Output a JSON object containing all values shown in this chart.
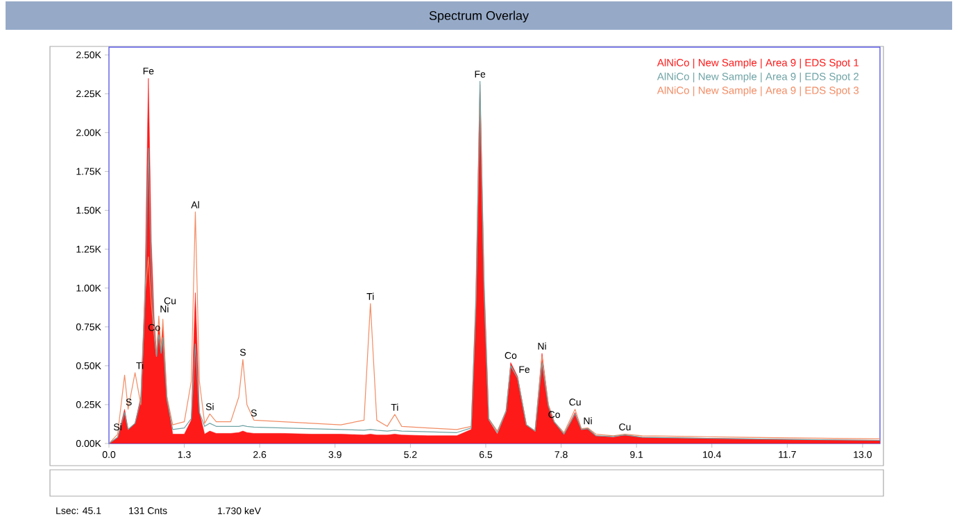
{
  "chart_data": {
    "type": "area",
    "title": "Spectrum Overlay",
    "x": [
      0,
      0.15,
      0.27,
      0.33,
      0.45,
      0.55,
      0.62,
      0.68,
      0.73,
      0.78,
      0.82,
      0.86,
      0.9,
      0.93,
      1.0,
      1.1,
      1.3,
      1.42,
      1.49,
      1.56,
      1.65,
      1.74,
      1.85,
      2.1,
      2.24,
      2.31,
      2.38,
      2.5,
      3.0,
      3.5,
      4.0,
      4.4,
      4.51,
      4.62,
      4.8,
      4.93,
      5.05,
      5.5,
      6.0,
      6.25,
      6.33,
      6.4,
      6.47,
      6.55,
      6.7,
      6.85,
      6.93,
      7.05,
      7.2,
      7.35,
      7.47,
      7.58,
      7.68,
      7.85,
      8.04,
      8.15,
      8.26,
      8.4,
      8.7,
      8.9,
      9.2,
      10.0,
      11.0,
      12.0,
      13.3
    ],
    "series": [
      {
        "name": "AlNiCo | New Sample | Area 9 | EDS Spot 1",
        "color": "#ff1a1a",
        "values": [
          0,
          40,
          220,
          90,
          130,
          300,
          980,
          2350,
          1300,
          800,
          580,
          760,
          620,
          750,
          300,
          60,
          60,
          150,
          970,
          200,
          60,
          80,
          65,
          65,
          70,
          80,
          70,
          65,
          65,
          60,
          60,
          55,
          60,
          55,
          55,
          60,
          55,
          50,
          50,
          90,
          900,
          2310,
          1000,
          150,
          60,
          200,
          520,
          430,
          120,
          80,
          580,
          250,
          140,
          60,
          200,
          90,
          100,
          50,
          40,
          55,
          40,
          35,
          30,
          25,
          20
        ]
      },
      {
        "name": "AlNiCo | New Sample | Area 9 | EDS Spot 2",
        "color": "#6fa3a5",
        "type": "line",
        "values": [
          0,
          40,
          200,
          90,
          130,
          280,
          900,
          1900,
          1100,
          720,
          560,
          700,
          580,
          680,
          280,
          90,
          100,
          160,
          640,
          200,
          110,
          130,
          110,
          110,
          110,
          115,
          110,
          105,
          100,
          95,
          90,
          85,
          90,
          85,
          80,
          85,
          80,
          75,
          70,
          100,
          950,
          2330,
          1050,
          160,
          70,
          210,
          500,
          420,
          120,
          80,
          520,
          240,
          140,
          60,
          190,
          90,
          95,
          50,
          45,
          55,
          40,
          35,
          30,
          25,
          20
        ]
      },
      {
        "name": "AlNiCo | New Sample | Area 9 | EDS Spot 3",
        "color": "#f28c64",
        "type": "line",
        "values": [
          0,
          60,
          440,
          220,
          455,
          250,
          950,
          1200,
          900,
          700,
          560,
          820,
          600,
          800,
          300,
          120,
          140,
          400,
          1490,
          400,
          130,
          190,
          140,
          140,
          300,
          540,
          250,
          150,
          140,
          130,
          120,
          150,
          900,
          150,
          110,
          187,
          110,
          100,
          90,
          110,
          900,
          2260,
          1000,
          160,
          80,
          210,
          500,
          420,
          120,
          80,
          560,
          250,
          140,
          70,
          220,
          95,
          100,
          60,
          50,
          60,
          50,
          45,
          40,
          35,
          30
        ]
      }
    ],
    "xlim": [
      0,
      13.3
    ],
    "ylim": [
      0,
      2550
    ],
    "xticks": [
      {
        "value": 0,
        "label": "0.0"
      },
      1.3,
      2.6,
      3.9,
      5.2,
      6.5,
      7.8,
      9.1,
      10.4,
      11.7,
      {
        "value": 13,
        "label": "13.0"
      }
    ],
    "yticks": [
      {
        "value": 0,
        "label": "0.00K"
      },
      {
        "value": 250,
        "label": "0.25K"
      },
      {
        "value": 500,
        "label": "0.50K"
      },
      {
        "value": 750,
        "label": "0.75K"
      },
      {
        "value": 1000,
        "label": "1.00K"
      },
      {
        "value": 1250,
        "label": "1.25K"
      },
      {
        "value": 1500,
        "label": "1.50K"
      },
      {
        "value": 1750,
        "label": "1.75K"
      },
      {
        "value": 2000,
        "label": "2.00K"
      },
      {
        "value": 2250,
        "label": "2.25K"
      },
      {
        "value": 2500,
        "label": "2.50K"
      }
    ],
    "legend": "top right",
    "annotations": [
      {
        "text": "Si",
        "x": 0.15,
        "y": 60
      },
      {
        "text": "S",
        "x": 0.27,
        "y": 220
      },
      {
        "text": "Ti",
        "x": 0.45,
        "y": 455
      },
      {
        "text": "Fe",
        "x": 0.68,
        "y": 2350
      },
      {
        "text": "Co",
        "x": 0.78,
        "y": 700
      },
      {
        "text": "Ni",
        "x": 0.86,
        "y": 820
      },
      {
        "text": "Cu",
        "x": 0.93,
        "y": 800
      },
      {
        "text": "Al",
        "x": 1.49,
        "y": 1490
      },
      {
        "text": "Si",
        "x": 1.74,
        "y": 190
      },
      {
        "text": "S",
        "x": 2.31,
        "y": 540
      },
      {
        "text": "S",
        "x": 2.5,
        "y": 150
      },
      {
        "text": "Ti",
        "x": 4.51,
        "y": 900
      },
      {
        "text": "Ti",
        "x": 4.93,
        "y": 187
      },
      {
        "text": "Fe",
        "x": 6.4,
        "y": 2330
      },
      {
        "text": "Co",
        "x": 6.93,
        "y": 520
      },
      {
        "text": "Fe",
        "x": 7.05,
        "y": 430
      },
      {
        "text": "Ni",
        "x": 7.47,
        "y": 580
      },
      {
        "text": "Co",
        "x": 7.68,
        "y": 140
      },
      {
        "text": "Cu",
        "x": 8.04,
        "y": 220
      },
      {
        "text": "Ni",
        "x": 8.26,
        "y": 100
      },
      {
        "text": "Cu",
        "x": 8.9,
        "y": 60
      },
      "Lsec: 45.1",
      "131 Cnts",
      "1.730 keV"
    ]
  }
}
